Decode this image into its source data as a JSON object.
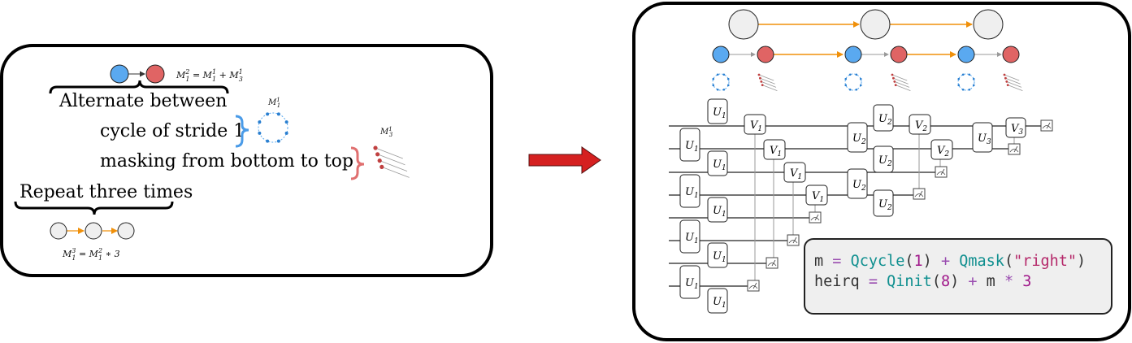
{
  "left_panel": {
    "top_equation": "M_1^2 = M_1^1 + M_3^1",
    "alternate_label": "Alternate between",
    "item_cycle": "cycle of stride 1",
    "item_mask": "masking from bottom to top",
    "cycle_motif_label": "M_1^1",
    "mask_motif_label": "M_3^1",
    "repeat_label": "Repeat three times",
    "bottom_equation": "M_1^3 = M_1^2 * 3"
  },
  "right_panel": {
    "gates": {
      "u1": "U",
      "u1_sub": "1",
      "v1": "V",
      "v1_sub": "1",
      "u2": "U",
      "u2_sub": "2",
      "v2": "V",
      "v2_sub": "2",
      "u3": "U",
      "u3_sub": "3",
      "v3": "V",
      "v3_sub": "3"
    },
    "code": {
      "line1": {
        "var": "m",
        "eq": "=",
        "fn1": "Qcycle",
        "arg1": "1",
        "plus": "+",
        "fn2": "Qmask",
        "arg2": "\"right\""
      },
      "line2": {
        "var": "heirq",
        "eq": "=",
        "fn1": "Qinit",
        "arg1": "8",
        "plus": "+",
        "m": "m",
        "star": "*",
        "arg2": "3"
      }
    }
  },
  "colors": {
    "blue_node": "#5aa9f0",
    "red_node": "#e06464",
    "grey_node": "#efefef",
    "orange_edge": "#f0900a",
    "arrow_red": "#d52020",
    "brace_blue": "#4a9be8",
    "brace_red": "#e07070"
  }
}
